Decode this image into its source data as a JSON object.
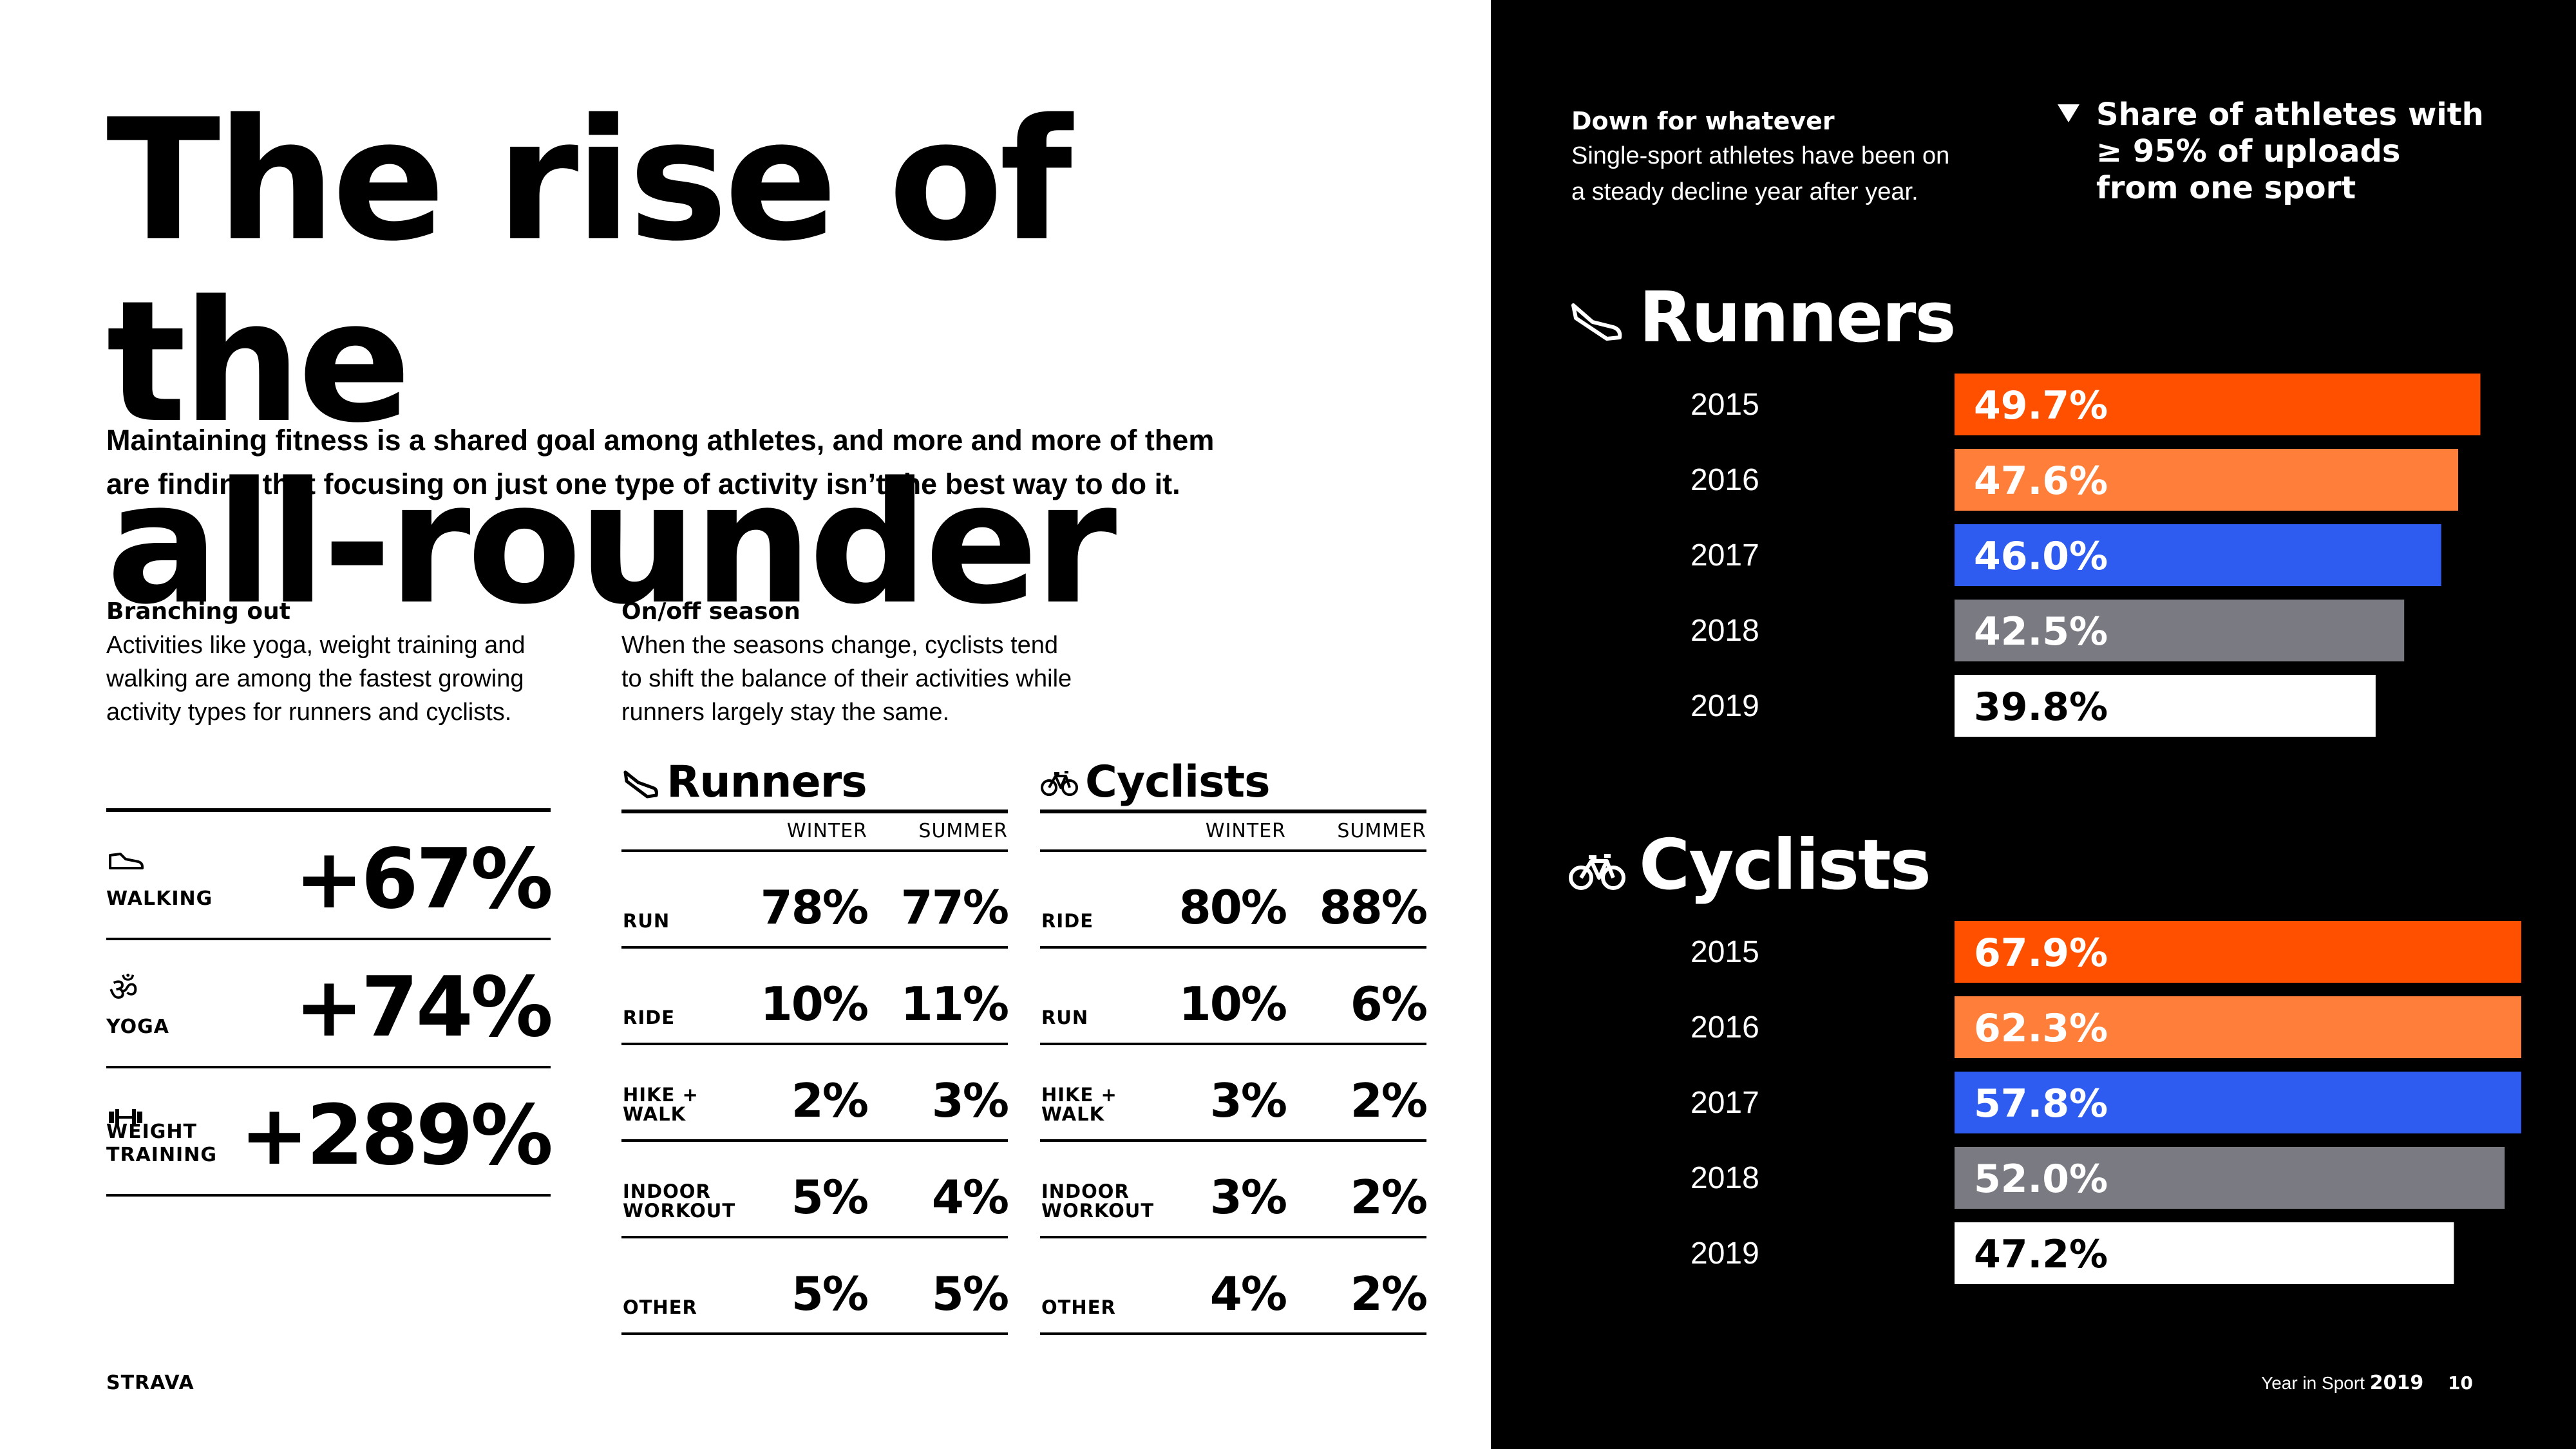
{
  "page": {
    "title_line1": "The rise of the",
    "title_line2": "all-rounder",
    "subtitle_line1": "Maintaining fitness is a shared goal among athletes, and more and more of them",
    "subtitle_line2": "are finding that focusing on just one type of activity isn’t the best way to do it."
  },
  "branching": {
    "heading": "Branching out",
    "body_lines": [
      "Activities like yoga, weight training and",
      "walking are among the fastest growing",
      "activity types for runners and cyclists."
    ],
    "items": [
      {
        "icon": "walking-shoe-icon",
        "label": "WALKING",
        "value": "+67%"
      },
      {
        "icon": "yoga-om-icon",
        "label": "YOGA",
        "value": "+74%"
      },
      {
        "icon": "dumbbell-icon",
        "label": "WEIGHT TRAINING",
        "value": "+289%"
      }
    ]
  },
  "season": {
    "heading": "On/off season",
    "body_lines": [
      "When the seasons change, cyclists tend",
      "to shift the balance of their activities while",
      "runners largely stay the same."
    ],
    "col_winter": "WINTER",
    "col_summer": "SUMMER",
    "runners": {
      "title": "Runners",
      "icon": "running-shoe-icon",
      "rows": [
        {
          "activity": "RUN",
          "winter": "78%",
          "summer": "77%"
        },
        {
          "activity": "RIDE",
          "winter": "10%",
          "summer": "11%"
        },
        {
          "activity": "HIKE + WALK",
          "winter": "2%",
          "summer": "3%"
        },
        {
          "activity": "INDOOR WORKOUT",
          "winter": "5%",
          "summer": "4%"
        },
        {
          "activity": "OTHER",
          "winter": "5%",
          "summer": "5%"
        }
      ]
    },
    "cyclists": {
      "title": "Cyclists",
      "icon": "bicycle-icon",
      "rows": [
        {
          "activity": "RIDE",
          "winter": "80%",
          "summer": "88%"
        },
        {
          "activity": "RUN",
          "winter": "10%",
          "summer": "6%"
        },
        {
          "activity": "HIKE + WALK",
          "winter": "3%",
          "summer": "2%"
        },
        {
          "activity": "INDOOR WORKOUT",
          "winter": "3%",
          "summer": "2%"
        },
        {
          "activity": "OTHER",
          "winter": "4%",
          "summer": "2%"
        }
      ]
    }
  },
  "right": {
    "heading": "Down for whatever",
    "body_lines": [
      "Single-sport athletes have been on",
      "a steady decline year after year."
    ],
    "legend_lines": [
      "Share of athletes with",
      "≥ 95% of uploads",
      "from one sport"
    ]
  },
  "footer": {
    "logo": "STRAVA",
    "label": "Year in Sport",
    "year": "2019",
    "page_number": "10"
  },
  "colors": {
    "accent_orange": "#ff5000",
    "light_orange": "#ff7f3a",
    "blue": "#2e5cf0",
    "grey": "#7a7a82",
    "white": "#ffffff"
  },
  "chart_data": [
    {
      "type": "bar",
      "title": "Runners",
      "icon": "running-shoe-icon",
      "categories": [
        "2015",
        "2016",
        "2017",
        "2018",
        "2019"
      ],
      "values": [
        49.7,
        47.6,
        46.0,
        42.5,
        39.8
      ],
      "labels": [
        "49.7%",
        "47.6%",
        "46.0%",
        "42.5%",
        "39.8%"
      ],
      "colors": [
        "#ff5000",
        "#ff7f3a",
        "#2e5cf0",
        "#7a7a82",
        "#ffffff"
      ]
    },
    {
      "type": "bar",
      "title": "Cyclists",
      "icon": "bicycle-icon",
      "categories": [
        "2015",
        "2016",
        "2017",
        "2018",
        "2019"
      ],
      "values": [
        67.9,
        62.3,
        57.8,
        52.0,
        47.2
      ],
      "labels": [
        "67.9%",
        "62.3%",
        "57.8%",
        "52.0%",
        "47.2%"
      ],
      "colors": [
        "#ff5000",
        "#ff7f3a",
        "#2e5cf0",
        "#7a7a82",
        "#ffffff"
      ]
    }
  ]
}
